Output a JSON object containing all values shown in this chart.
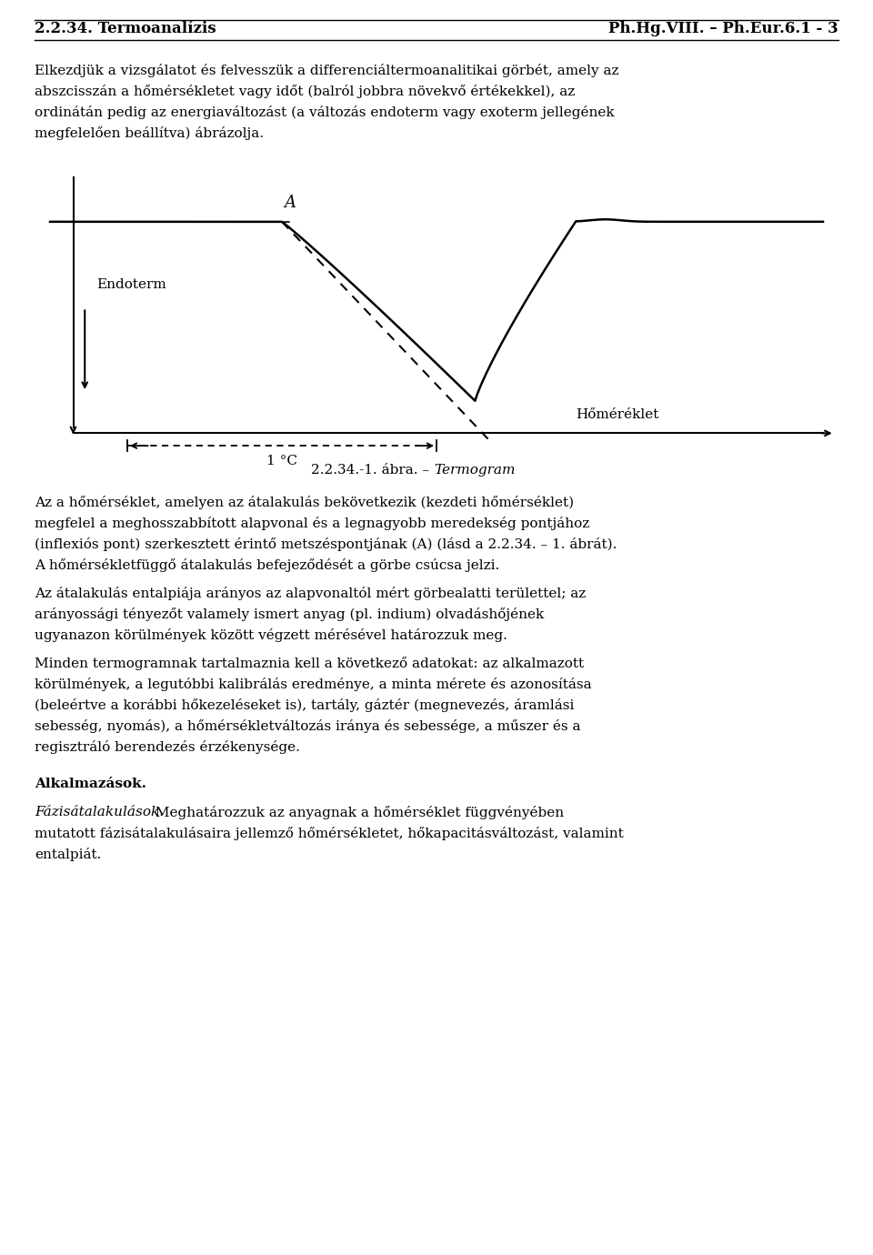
{
  "title_left": "2.2.34. Termoanalízis",
  "title_right": "Ph.Hg.VIII. – Ph.Eur.6.1 - 3",
  "para1_lines": [
    "Elkezdjük a vizsgálatot és felvesszük a differenciáltermoanalitikai görbét, amely az",
    "abszcisszán a hőmérsékletet vagy időt (balról jobbra növekvő értékekkel), az",
    "ordinátán pedig az energiaváltozást (a változás endoterm vagy exoterm jellegének",
    "megfelelően beállítva) ábrázolja."
  ],
  "fig_caption_normal": "2.2.34.-1. ábra. – ",
  "fig_caption_italic": "Termogram",
  "para2_lines": [
    "Az a hőmérséklet, amelyen az átalakulás bekövetkezik (kezdeti hőmérséklet)",
    "megfelel a meghosszabbított alapvonal és a legnagyobb meredekség pontjához",
    "(inflexiós pont) szerkesztett érintő metszéspontjának (A) (lásd a 2.2.34. – 1. ábrát).",
    "A hőmérsékletfüggő átalakulás befejeződését a görbe csúcsa jelzi."
  ],
  "para3_lines": [
    "Az átalakulás entalpiája arányos az alapvonaltól mért görbealatti területtel; az",
    "arányossági tényezőt valamely ismert anyag (pl. indium) olvadáshőjének",
    "ugyanazon körülmények között végzett mérésével határozzuk meg."
  ],
  "para4_lines": [
    "Minden termogramnak tartalmaznia kell a következő adatokat: az alkalmazott",
    "körülmények, a legutóbbi kalibrálás eredménye, a minta mérete és azonosítása",
    "(beleértve a korábbi hőkezeléseket is), tartály, gáztér (megnevezés, áramlási",
    "sebesség, nyomás), a hőmérsékletváltozás iránya és sebessége, a műszer és a",
    "regisztráló berendezés érzékenysége."
  ],
  "para5_bold": "Alkalmazások.",
  "para6_italic": "Fázisátalakulások.",
  "para6_rest_line1": "Meghatározzuk az anyagnak a hőmérséklet függvényében",
  "para6_lines": [
    "mutatott fázisátalakulásaira jellemző hőmérsékletet, hőkapacitásváltozást, valamint",
    "entalpiát."
  ],
  "label_endoterm": "Endoterm",
  "label_homerseklet": "Hőméréklet",
  "label_1C": "1 °C",
  "label_A": "A",
  "bg_color": "#ffffff",
  "text_color": "#000000"
}
